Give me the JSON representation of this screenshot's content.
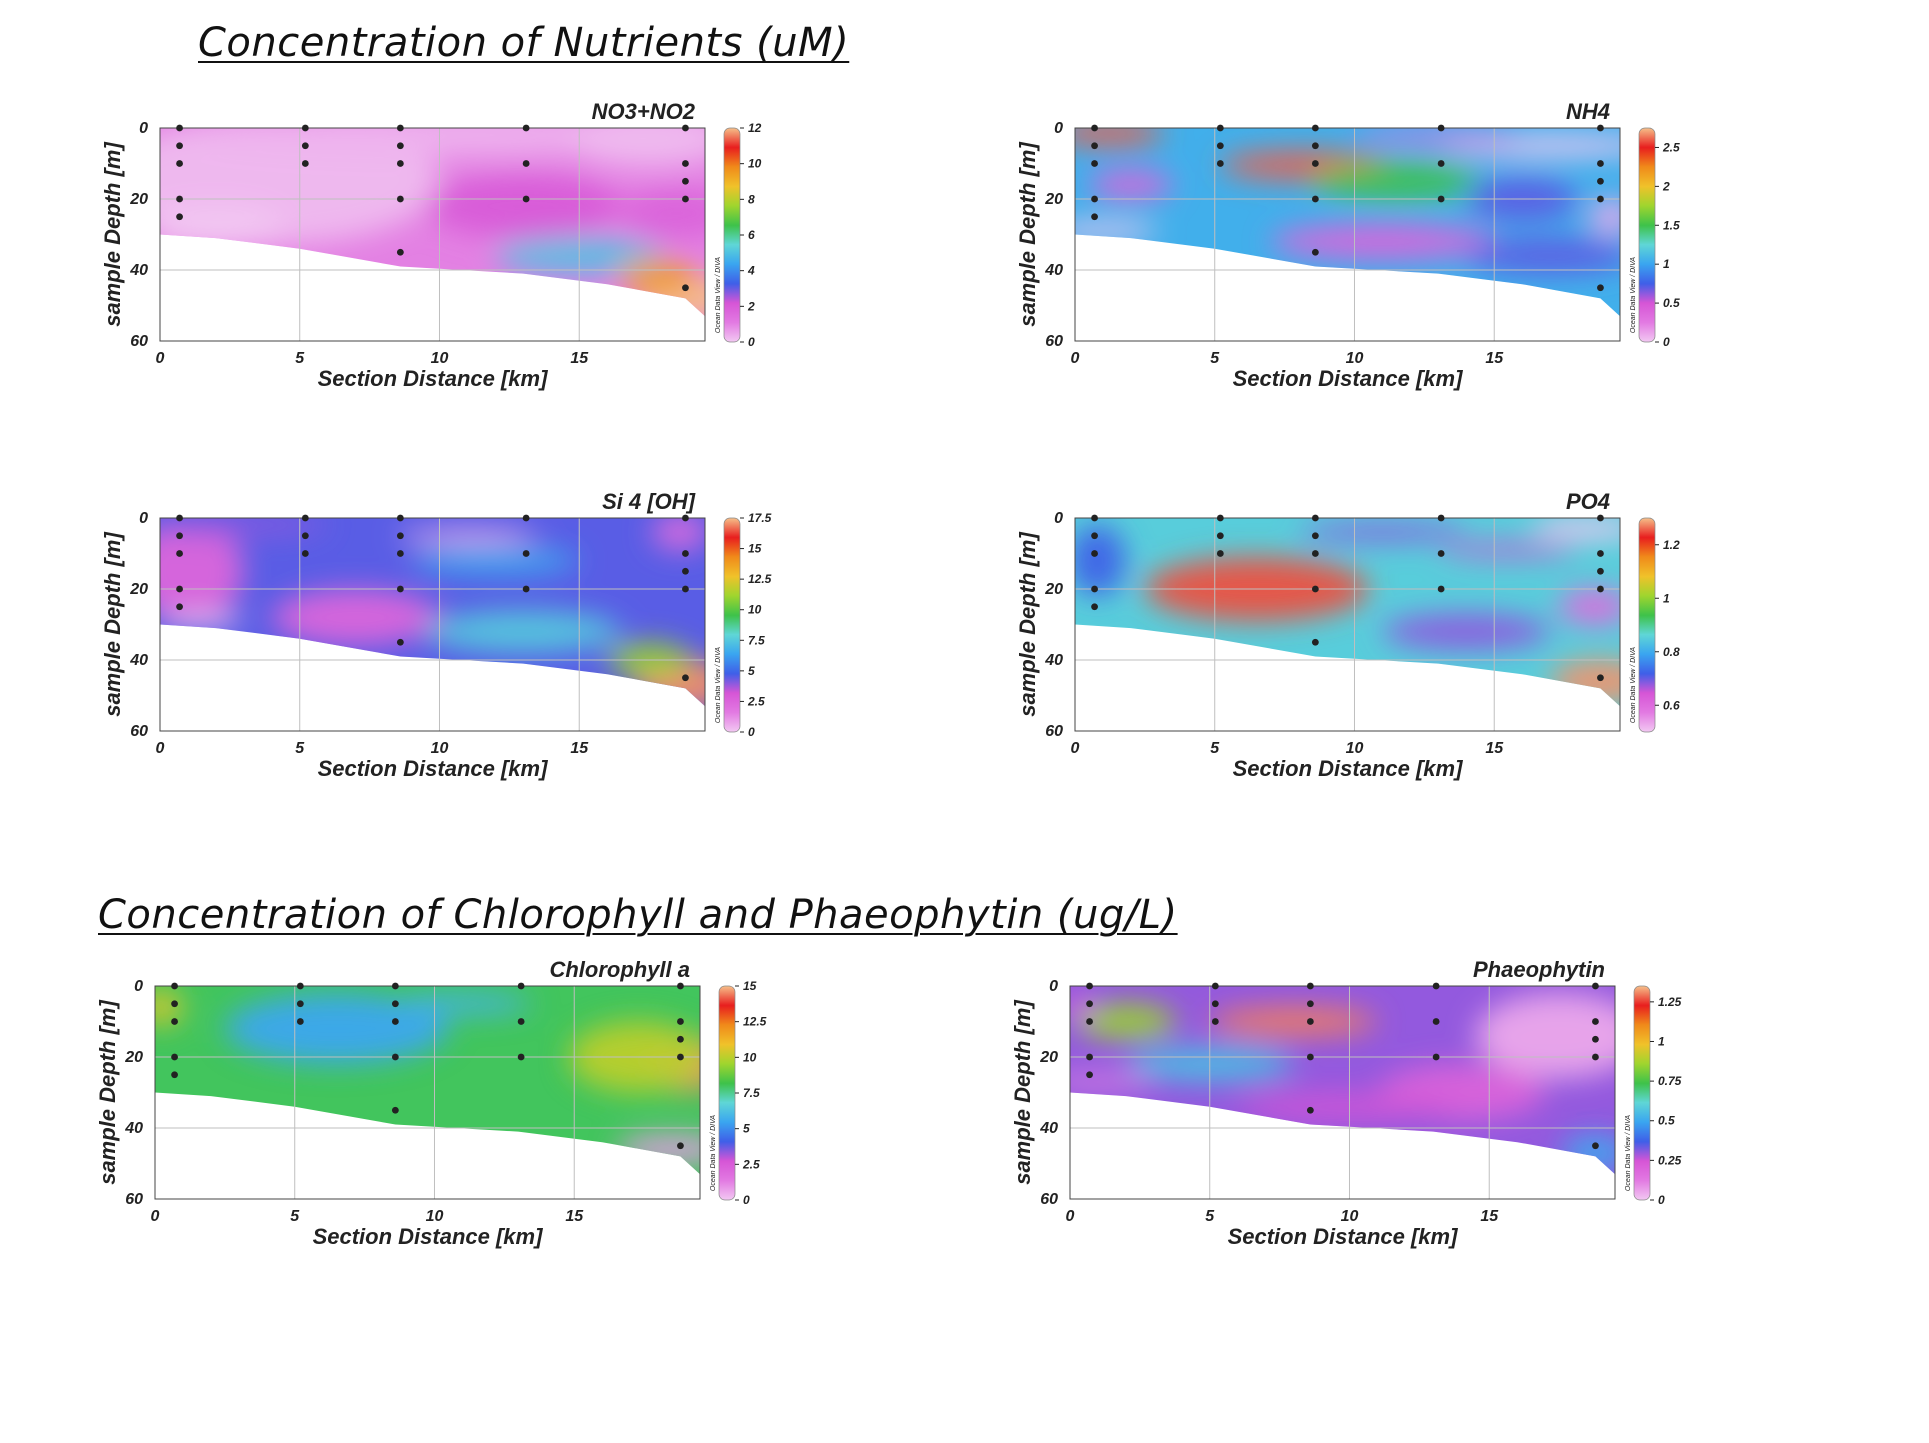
{
  "titles": {
    "nutrients": "Concentration of Nutrients (uM)",
    "chl": "Concentration of Chlorophyll and Phaeophytin (ug/L)"
  },
  "watermark": "Ocean Data View / DIVA",
  "palette": [
    "#f2c8f2",
    "#e27ae2",
    "#d655d6",
    "#3f5fe8",
    "#3aa5f0",
    "#5fd6d6",
    "#3ec24a",
    "#9fd52e",
    "#f0c22a",
    "#f08a1a",
    "#e81e1e",
    "#f6c08a"
  ],
  "axis_labels": {
    "x": "Section Distance [km]",
    "y": "sample Depth [m]"
  },
  "chart_data": [
    {
      "id": "no3",
      "type": "heatmap",
      "title": "NO3+NO2",
      "xlabel": "Section Distance [km]",
      "ylabel": "sample Depth [m]",
      "xlim": [
        0,
        19.5
      ],
      "ylim": [
        60,
        0
      ],
      "xticks": [
        "0",
        "5",
        "10",
        "15"
      ],
      "yticks": [
        "0",
        "20",
        "40",
        "60"
      ],
      "colorbar": {
        "range": [
          0,
          12
        ],
        "ticks": [
          "12",
          "10",
          "8",
          "6",
          "4",
          "2",
          "0"
        ]
      },
      "stations": [
        {
          "x": 0.7,
          "depths": [
            0,
            5,
            10,
            20,
            25
          ]
        },
        {
          "x": 5.2,
          "depths": [
            0,
            5,
            10
          ]
        },
        {
          "x": 8.6,
          "depths": [
            0,
            5,
            10,
            20,
            35
          ]
        },
        {
          "x": 13.1,
          "depths": [
            0,
            10,
            20
          ]
        },
        {
          "x": 18.8,
          "depths": [
            0,
            10,
            15,
            20,
            45
          ]
        }
      ],
      "bottom_depth": [
        [
          0,
          30
        ],
        [
          2,
          31
        ],
        [
          5,
          34
        ],
        [
          8.6,
          39
        ],
        [
          13,
          41
        ],
        [
          16,
          44
        ],
        [
          18.8,
          48
        ],
        [
          19.5,
          53
        ]
      ],
      "blobs": [
        {
          "x": 4,
          "y": 15,
          "v": 0.2,
          "rx": 6,
          "ry": 18
        },
        {
          "x": 10,
          "y": 2,
          "v": 0.3,
          "rx": 9,
          "ry": 6
        },
        {
          "x": 17.5,
          "y": 3,
          "v": 0.2,
          "rx": 3,
          "ry": 8
        },
        {
          "x": 2,
          "y": 28,
          "v": 0,
          "rx": 2.5,
          "ry": 6
        },
        {
          "x": 13,
          "y": 22,
          "v": 2,
          "rx": 3.5,
          "ry": 9
        },
        {
          "x": 18.5,
          "y": 24,
          "v": 1.8,
          "rx": 2,
          "ry": 7
        },
        {
          "x": 15,
          "y": 36,
          "v": 5,
          "rx": 3,
          "ry": 5
        },
        {
          "x": 19,
          "y": 48,
          "v": 12,
          "rx": 1.8,
          "ry": 6
        },
        {
          "x": 17.8,
          "y": 42,
          "v": 9.5,
          "rx": 1.4,
          "ry": 5
        }
      ],
      "bg_value": 1
    },
    {
      "id": "nh4",
      "type": "heatmap",
      "title": "NH4",
      "xlabel": "Section Distance [km]",
      "ylabel": "sample Depth [m]",
      "xlim": [
        0,
        19.5
      ],
      "ylim": [
        60,
        0
      ],
      "xticks": [
        "0",
        "5",
        "10",
        "15"
      ],
      "yticks": [
        "0",
        "20",
        "40",
        "60"
      ],
      "colorbar": {
        "range": [
          0,
          2.75
        ],
        "ticks": [
          "2.5",
          "2",
          "1.5",
          "1",
          "0.5",
          "0"
        ]
      },
      "stations": [
        {
          "x": 0.7,
          "depths": [
            0,
            5,
            10,
            20,
            25
          ]
        },
        {
          "x": 5.2,
          "depths": [
            0,
            5,
            10
          ]
        },
        {
          "x": 8.6,
          "depths": [
            0,
            5,
            10,
            20,
            35
          ]
        },
        {
          "x": 13.1,
          "depths": [
            0,
            10,
            20
          ]
        },
        {
          "x": 18.8,
          "depths": [
            0,
            10,
            15,
            20,
            45
          ]
        }
      ],
      "bottom_depth": [
        [
          0,
          30
        ],
        [
          2,
          31
        ],
        [
          5,
          34
        ],
        [
          8.6,
          39
        ],
        [
          13,
          41
        ],
        [
          16,
          44
        ],
        [
          18.8,
          48
        ],
        [
          19.5,
          53
        ]
      ],
      "blobs": [
        {
          "x": 1.2,
          "y": 1.5,
          "v": 2.6,
          "rx": 2,
          "ry": 3.5
        },
        {
          "x": 8.2,
          "y": 10.5,
          "v": 2.6,
          "rx": 3,
          "ry": 4
        },
        {
          "x": 11.5,
          "y": 15,
          "v": 1.5,
          "rx": 3,
          "ry": 5
        },
        {
          "x": 17,
          "y": 5,
          "v": 0,
          "rx": 4,
          "ry": 3
        },
        {
          "x": 13,
          "y": 3,
          "v": 0.3,
          "rx": 3,
          "ry": 2
        },
        {
          "x": 19.2,
          "y": 25,
          "v": 0.1,
          "rx": 0.8,
          "ry": 5
        },
        {
          "x": 2,
          "y": 16,
          "v": 0.4,
          "rx": 1.5,
          "ry": 4
        },
        {
          "x": 1,
          "y": 29,
          "v": 0,
          "rx": 2,
          "ry": 2.5
        },
        {
          "x": 11,
          "y": 32,
          "v": 0.4,
          "rx": 4,
          "ry": 5
        },
        {
          "x": 16,
          "y": 20,
          "v": 0.7,
          "rx": 2,
          "ry": 6
        },
        {
          "x": 17,
          "y": 36,
          "v": 0.7,
          "rx": 3,
          "ry": 5
        }
      ],
      "bg_value": 1.05
    },
    {
      "id": "si4",
      "type": "heatmap",
      "title": "Si 4 [OH]",
      "xlabel": "Section Distance [km]",
      "ylabel": "sample Depth [m]",
      "xlim": [
        0,
        19.5
      ],
      "ylim": [
        60,
        0
      ],
      "xticks": [
        "0",
        "5",
        "10",
        "15"
      ],
      "yticks": [
        "0",
        "20",
        "40",
        "60"
      ],
      "colorbar": {
        "range": [
          0,
          17.5
        ],
        "ticks": [
          "17.5",
          "15",
          "12.5",
          "10",
          "7.5",
          "5",
          "2.5",
          "0"
        ]
      },
      "stations": [
        {
          "x": 0.7,
          "depths": [
            0,
            5,
            10,
            20,
            25
          ]
        },
        {
          "x": 5.2,
          "depths": [
            0,
            5,
            10
          ]
        },
        {
          "x": 8.6,
          "depths": [
            0,
            5,
            10,
            20,
            35
          ]
        },
        {
          "x": 13.1,
          "depths": [
            0,
            10,
            20
          ]
        },
        {
          "x": 18.8,
          "depths": [
            0,
            10,
            15,
            20,
            45
          ]
        }
      ],
      "bottom_depth": [
        [
          0,
          30
        ],
        [
          2,
          31
        ],
        [
          5,
          34
        ],
        [
          8.6,
          39
        ],
        [
          13,
          41
        ],
        [
          16,
          44
        ],
        [
          18.8,
          48
        ],
        [
          19.5,
          53
        ]
      ],
      "blobs": [
        {
          "x": 1,
          "y": 15,
          "v": 2.5,
          "rx": 2,
          "ry": 15
        },
        {
          "x": 7,
          "y": 28,
          "v": 2.5,
          "rx": 3,
          "ry": 8
        },
        {
          "x": 11,
          "y": 5,
          "v": 0.5,
          "rx": 2.5,
          "ry": 2
        },
        {
          "x": 3,
          "y": 2,
          "v": 4,
          "rx": 3,
          "ry": 3
        },
        {
          "x": 12,
          "y": 12,
          "v": 6.5,
          "rx": 3,
          "ry": 4
        },
        {
          "x": 13,
          "y": 32,
          "v": 7.5,
          "rx": 3.5,
          "ry": 6
        },
        {
          "x": 18.6,
          "y": 4,
          "v": 2.2,
          "rx": 1,
          "ry": 5
        },
        {
          "x": 18.8,
          "y": 47,
          "v": 17,
          "rx": 1.8,
          "ry": 7
        },
        {
          "x": 17.5,
          "y": 40,
          "v": 11,
          "rx": 1.5,
          "ry": 5
        },
        {
          "x": 1.5,
          "y": 29,
          "v": 0,
          "rx": 1.5,
          "ry": 2
        }
      ],
      "bg_value": 4.5
    },
    {
      "id": "po4",
      "type": "heatmap",
      "title": "PO4",
      "xlabel": "Section Distance [km]",
      "ylabel": "sample Depth [m]",
      "xlim": [
        0,
        19.5
      ],
      "ylim": [
        60,
        0
      ],
      "xticks": [
        "0",
        "5",
        "10",
        "15"
      ],
      "yticks": [
        "0",
        "20",
        "40",
        "60"
      ],
      "colorbar": {
        "range": [
          0.5,
          1.3
        ],
        "ticks": [
          "1.2",
          "1",
          "0.8",
          "0.6"
        ]
      },
      "stations": [
        {
          "x": 0.7,
          "depths": [
            0,
            5,
            10,
            20,
            25
          ]
        },
        {
          "x": 5.2,
          "depths": [
            0,
            5,
            10
          ]
        },
        {
          "x": 8.6,
          "depths": [
            0,
            5,
            10,
            20,
            35
          ]
        },
        {
          "x": 13.1,
          "depths": [
            0,
            10,
            20
          ]
        },
        {
          "x": 18.8,
          "depths": [
            0,
            10,
            15,
            20,
            45
          ]
        }
      ],
      "bottom_depth": [
        [
          0,
          30
        ],
        [
          2,
          31
        ],
        [
          5,
          34
        ],
        [
          8.6,
          39
        ],
        [
          13,
          41
        ],
        [
          16,
          44
        ],
        [
          18.8,
          48
        ],
        [
          19.5,
          53
        ]
      ],
      "blobs": [
        {
          "x": 6.5,
          "y": 20,
          "v": 1.25,
          "rx": 4,
          "ry": 9
        },
        {
          "x": 18.3,
          "y": 3,
          "v": 0.45,
          "rx": 2,
          "ry": 3
        },
        {
          "x": 11,
          "y": 4,
          "v": 0.68,
          "rx": 3,
          "ry": 2.5
        },
        {
          "x": 15.5,
          "y": 9,
          "v": 0.65,
          "rx": 2.5,
          "ry": 2
        },
        {
          "x": 18.6,
          "y": 25,
          "v": 0.6,
          "rx": 1.3,
          "ry": 5
        },
        {
          "x": 18.8,
          "y": 46,
          "v": 1.28,
          "rx": 1.8,
          "ry": 6
        },
        {
          "x": 0.8,
          "y": 12,
          "v": 0.72,
          "rx": 1,
          "ry": 10
        },
        {
          "x": 14,
          "y": 32,
          "v": 0.68,
          "rx": 3,
          "ry": 5
        }
      ],
      "bg_value": 0.85
    },
    {
      "id": "chla",
      "type": "heatmap",
      "title": "Chlorophyll a",
      "xlabel": "Section Distance [km]",
      "ylabel": "sample Depth [m]",
      "xlim": [
        0,
        19.5
      ],
      "ylim": [
        60,
        0
      ],
      "xticks": [
        "0",
        "5",
        "10",
        "15"
      ],
      "yticks": [
        "0",
        "20",
        "40",
        "60"
      ],
      "colorbar": {
        "range": [
          0,
          15
        ],
        "ticks": [
          "15",
          "12.5",
          "10",
          "7.5",
          "5",
          "2.5",
          "0"
        ]
      },
      "stations": [
        {
          "x": 0.7,
          "depths": [
            0,
            5,
            10,
            20,
            25
          ]
        },
        {
          "x": 5.2,
          "depths": [
            0,
            5,
            10
          ]
        },
        {
          "x": 8.6,
          "depths": [
            0,
            5,
            10,
            20,
            35
          ]
        },
        {
          "x": 13.1,
          "depths": [
            0,
            10,
            20
          ]
        },
        {
          "x": 18.8,
          "depths": [
            0,
            10,
            15,
            20,
            45
          ]
        }
      ],
      "bottom_depth": [
        [
          0,
          30
        ],
        [
          2,
          31
        ],
        [
          5,
          34
        ],
        [
          8.6,
          39
        ],
        [
          13,
          41
        ],
        [
          16,
          44
        ],
        [
          18.8,
          48
        ],
        [
          19.5,
          53
        ]
      ],
      "blobs": [
        {
          "x": 0.2,
          "y": 6,
          "v": 10.5,
          "rx": 0.8,
          "ry": 5
        },
        {
          "x": 19,
          "y": 22,
          "v": 14.5,
          "rx": 1.5,
          "ry": 8
        },
        {
          "x": 17.3,
          "y": 20,
          "v": 10,
          "rx": 2.5,
          "ry": 10
        },
        {
          "x": 6.5,
          "y": 12,
          "v": 5.5,
          "rx": 4,
          "ry": 10
        },
        {
          "x": 11,
          "y": 5,
          "v": 5.8,
          "rx": 2.5,
          "ry": 3
        },
        {
          "x": 18.5,
          "y": 46,
          "v": 0.8,
          "rx": 2,
          "ry": 4
        }
      ],
      "bg_value": 8
    },
    {
      "id": "phaeo",
      "type": "heatmap",
      "title": "Phaeophytin",
      "xlabel": "Section Distance [km]",
      "ylabel": "sample Depth [m]",
      "xlim": [
        0,
        19.5
      ],
      "ylim": [
        60,
        0
      ],
      "xticks": [
        "0",
        "5",
        "10",
        "15"
      ],
      "yticks": [
        "0",
        "20",
        "40",
        "60"
      ],
      "colorbar": {
        "range": [
          0,
          1.35
        ],
        "ticks": [
          "1.25",
          "1",
          "0.75",
          "0.5",
          "0.25",
          "0"
        ]
      },
      "stations": [
        {
          "x": 0.7,
          "depths": [
            0,
            5,
            10,
            20,
            25
          ]
        },
        {
          "x": 5.2,
          "depths": [
            0,
            5,
            10
          ]
        },
        {
          "x": 8.6,
          "depths": [
            0,
            5,
            10,
            20,
            35
          ]
        },
        {
          "x": 13.1,
          "depths": [
            0,
            10,
            20
          ]
        },
        {
          "x": 18.8,
          "depths": [
            0,
            10,
            15,
            20,
            45
          ]
        }
      ],
      "bottom_depth": [
        [
          0,
          30
        ],
        [
          2,
          31
        ],
        [
          5,
          34
        ],
        [
          8.6,
          39
        ],
        [
          13,
          41
        ],
        [
          16,
          44
        ],
        [
          18.8,
          48
        ],
        [
          19.5,
          53
        ]
      ],
      "blobs": [
        {
          "x": 8,
          "y": 10,
          "v": 1.3,
          "rx": 3,
          "ry": 4
        },
        {
          "x": 2,
          "y": 10,
          "v": 0.85,
          "rx": 1.8,
          "ry": 5
        },
        {
          "x": 17.5,
          "y": 14,
          "v": 0.05,
          "rx": 3,
          "ry": 12
        },
        {
          "x": 14,
          "y": 30,
          "v": 0.2,
          "rx": 3,
          "ry": 8
        },
        {
          "x": 10,
          "y": 34,
          "v": 0.25,
          "rx": 4,
          "ry": 4
        },
        {
          "x": 0.3,
          "y": 6,
          "v": 0.2,
          "rx": 0.6,
          "ry": 3
        },
        {
          "x": 1,
          "y": 27,
          "v": 0.1,
          "rx": 2,
          "ry": 2
        },
        {
          "x": 18.8,
          "y": 47,
          "v": 0.5,
          "rx": 1.2,
          "ry": 5
        },
        {
          "x": 5,
          "y": 22,
          "v": 0.55,
          "rx": 3,
          "ry": 5
        }
      ],
      "bg_value": 0.3
    }
  ]
}
